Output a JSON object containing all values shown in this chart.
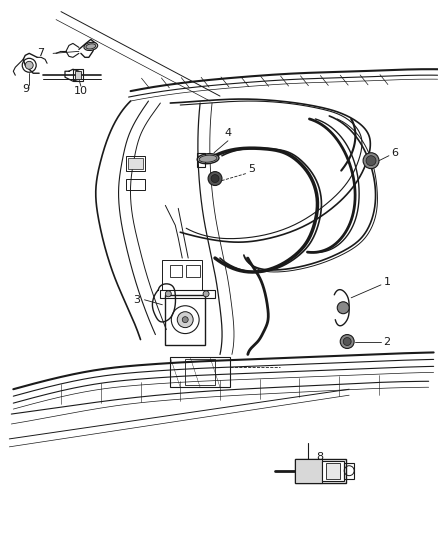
{
  "background_color": "#ffffff",
  "line_color": "#1a1a1a",
  "label_color": "#1a1a1a",
  "fig_width": 4.39,
  "fig_height": 5.33,
  "dpi": 100
}
